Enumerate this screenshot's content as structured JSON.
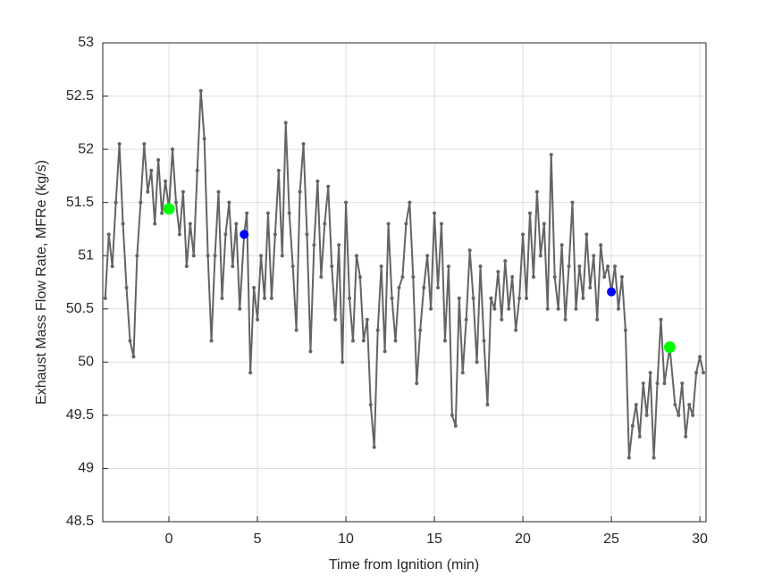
{
  "chart_data": {
    "type": "line",
    "xlabel": "Time from Ignition (min)",
    "ylabel": "Exhaust Mass Flow Rate, MFRe (kg/s)",
    "xlim": [
      -3.74,
      30.35
    ],
    "xticks": [
      0,
      5,
      10,
      15,
      20,
      25,
      30
    ],
    "ylim": [
      48.5,
      53
    ],
    "yticks": [
      48.5,
      49,
      49.5,
      50,
      50.5,
      51,
      51.5,
      52,
      52.5,
      53
    ],
    "grid": true,
    "series": [
      {
        "style": "line",
        "color": "#646464",
        "x": [
          -3.6,
          -3.4,
          -3.2,
          -3.0,
          -2.8,
          -2.6,
          -2.4,
          -2.2,
          -2.0,
          -1.8,
          -1.6,
          -1.4,
          -1.2,
          -1.0,
          -0.8,
          -0.6,
          -0.4,
          -0.2,
          0,
          0.2,
          0.4,
          0.6,
          0.8,
          1.0,
          1.2,
          1.4,
          1.6,
          1.8,
          2.0,
          2.2,
          2.4,
          2.6,
          2.8,
          3.0,
          3.2,
          3.4,
          3.6,
          3.8,
          4.0,
          4.25,
          4.4,
          4.6,
          4.8,
          5.0,
          5.2,
          5.4,
          5.6,
          5.8,
          6.0,
          6.2,
          6.4,
          6.6,
          6.8,
          7.0,
          7.2,
          7.4,
          7.6,
          7.8,
          8.0,
          8.2,
          8.4,
          8.6,
          8.8,
          9.0,
          9.2,
          9.4,
          9.6,
          9.8,
          10.0,
          10.2,
          10.4,
          10.6,
          10.8,
          11.0,
          11.2,
          11.4,
          11.6,
          11.8,
          12.0,
          12.2,
          12.4,
          12.6,
          12.8,
          13.0,
          13.2,
          13.4,
          13.6,
          13.8,
          14.0,
          14.2,
          14.4,
          14.6,
          14.8,
          15.0,
          15.2,
          15.4,
          15.6,
          15.8,
          16.0,
          16.2,
          16.4,
          16.6,
          16.8,
          17.0,
          17.2,
          17.4,
          17.6,
          17.8,
          18.0,
          18.2,
          18.4,
          18.6,
          18.8,
          19.0,
          19.2,
          19.4,
          19.6,
          19.8,
          20.0,
          20.2,
          20.4,
          20.6,
          20.8,
          21.0,
          21.2,
          21.4,
          21.6,
          21.8,
          22.0,
          22.2,
          22.4,
          22.6,
          22.8,
          23.0,
          23.2,
          23.4,
          23.6,
          23.8,
          24.0,
          24.2,
          24.4,
          24.6,
          24.8,
          25.0,
          25.2,
          25.4,
          25.6,
          25.8,
          26.0,
          26.2,
          26.4,
          26.6,
          26.8,
          27.0,
          27.2,
          27.4,
          27.6,
          27.8,
          28.0,
          28.3,
          28.6,
          28.8,
          29.0,
          29.2,
          29.4,
          29.6,
          29.8,
          30.0,
          30.2
        ],
        "values": [
          50.6,
          51.2,
          50.9,
          51.5,
          52.05,
          51.3,
          50.7,
          50.2,
          50.05,
          51.0,
          51.5,
          52.05,
          51.6,
          51.8,
          51.3,
          51.9,
          51.4,
          51.7,
          51.44,
          52.0,
          51.5,
          51.2,
          51.6,
          50.9,
          51.3,
          51.0,
          51.8,
          52.55,
          52.1,
          51.0,
          50.2,
          51.0,
          51.6,
          50.6,
          51.2,
          51.5,
          50.9,
          51.3,
          50.5,
          51.2,
          51.4,
          49.9,
          50.7,
          50.4,
          51.0,
          50.6,
          51.4,
          50.6,
          51.2,
          51.8,
          51.0,
          52.25,
          51.4,
          50.9,
          50.3,
          51.6,
          52.05,
          51.2,
          50.1,
          51.1,
          51.7,
          50.8,
          51.3,
          51.65,
          50.9,
          50.4,
          51.1,
          50.0,
          51.5,
          50.6,
          50.2,
          51.0,
          50.8,
          50.2,
          50.4,
          49.6,
          49.2,
          50.3,
          50.9,
          50.1,
          51.3,
          50.6,
          50.2,
          50.7,
          50.8,
          51.3,
          51.5,
          50.8,
          49.8,
          50.3,
          50.7,
          51.0,
          50.5,
          51.4,
          50.7,
          51.3,
          50.2,
          50.9,
          49.5,
          49.4,
          50.6,
          49.9,
          50.4,
          51.05,
          50.6,
          50.0,
          50.9,
          50.2,
          49.6,
          50.6,
          50.5,
          50.85,
          50.4,
          50.95,
          50.5,
          50.8,
          50.3,
          50.6,
          51.2,
          50.6,
          51.4,
          50.8,
          51.6,
          51.0,
          51.3,
          50.5,
          51.95,
          50.8,
          50.5,
          51.1,
          50.4,
          50.9,
          51.5,
          50.5,
          50.9,
          50.6,
          51.2,
          50.7,
          51.0,
          50.4,
          51.1,
          50.8,
          50.9,
          50.66,
          50.9,
          50.5,
          50.8,
          50.3,
          49.1,
          49.4,
          49.6,
          49.3,
          49.8,
          49.5,
          49.9,
          49.1,
          49.8,
          50.4,
          49.8,
          50.14,
          49.6,
          49.5,
          49.8,
          49.3,
          49.6,
          49.5,
          49.9,
          50.05,
          49.9
        ]
      },
      {
        "style": "points",
        "color": "#00ff00",
        "x": [
          0,
          28.3
        ],
        "values": [
          51.44,
          50.14
        ]
      },
      {
        "style": "points",
        "color": "#0000ff",
        "x": [
          4.25,
          25.0
        ],
        "values": [
          51.2,
          50.66
        ]
      }
    ]
  }
}
